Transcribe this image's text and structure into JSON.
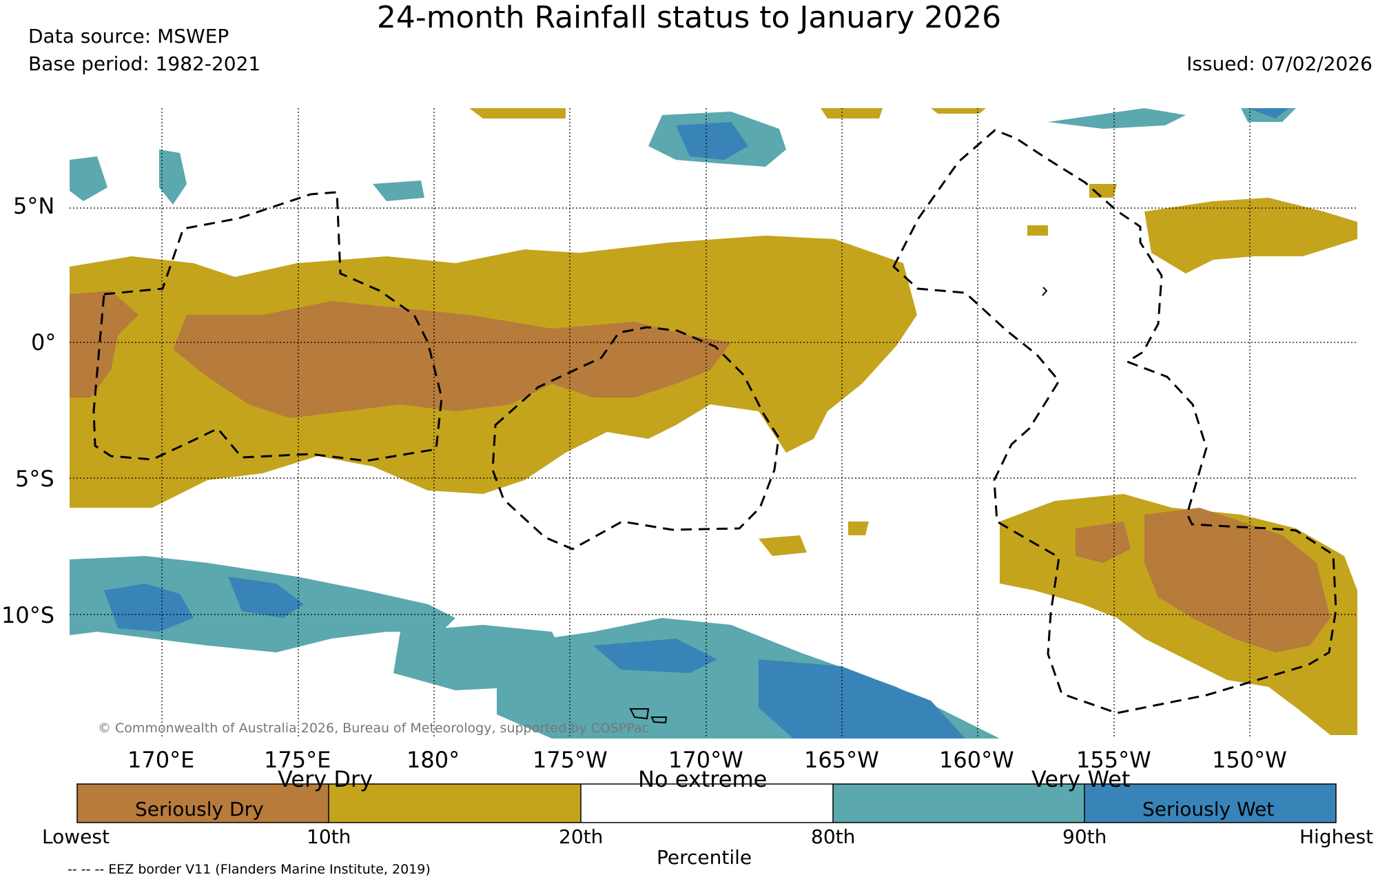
{
  "title": "24-month Rainfall status to January 2026",
  "data_source": "Data source: MSWEP",
  "base_period": "Base period: 1982-2021",
  "issued": "Issued: 07/02/2026",
  "map": {
    "lat_labels": [
      "5°N",
      "0°",
      "5°S",
      "10°S"
    ],
    "lon_labels": [
      "170°E",
      "175°E",
      "180°",
      "175°W",
      "170°W",
      "165°W",
      "160°W",
      "155°W",
      "150°W"
    ],
    "copyright": "© Commonwealth of Australia 2026, Bureau of Meteorology, supported by COSPPac",
    "colors": {
      "seriously_dry": "#b77b3b",
      "very_dry": "#c4a41d",
      "no_extreme": "#ffffff",
      "very_wet": "#5ba8ae",
      "seriously_wet": "#3884b8"
    }
  },
  "colorbar": {
    "categories": {
      "very_dry": "Very Dry",
      "no_extreme": "No extreme",
      "very_wet": "Very Wet"
    },
    "inside_labels": {
      "seriously_dry": "Seriously Dry",
      "seriously_wet": "Seriously Wet"
    },
    "ticks": [
      "Lowest",
      "10th",
      "20th",
      "80th",
      "90th",
      "Highest"
    ],
    "axis_label": "Percentile"
  },
  "eez_note": "-- -- -- EEZ border V11 (Flanders Marine Institute, 2019)"
}
